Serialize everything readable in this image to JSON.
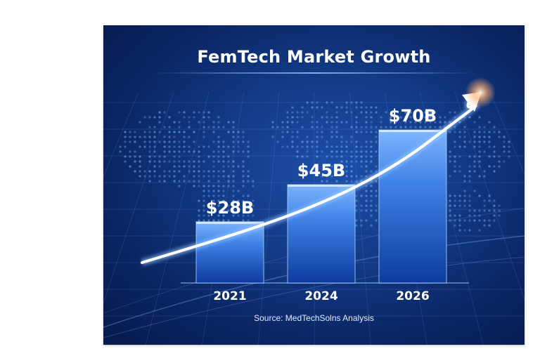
{
  "chart_data": {
    "type": "bar",
    "title": "FemTech Market Growth",
    "categories": [
      "2021",
      "2024",
      "2026"
    ],
    "values": [
      28,
      45,
      70
    ],
    "value_labels": [
      "$28B",
      "$45B",
      "$70B"
    ],
    "unit": "$B",
    "ylim": [
      0,
      80
    ],
    "grid": false,
    "legend": "none",
    "trend_arrow": true,
    "source": "Source: MedTechSolns Analysis",
    "colors": {
      "background": "#0b2563",
      "bar_top": "#7fb4ff",
      "bar_bottom": "#0d3b9e",
      "text": "#ffffff",
      "arrow_glow": "#ffb070"
    }
  }
}
